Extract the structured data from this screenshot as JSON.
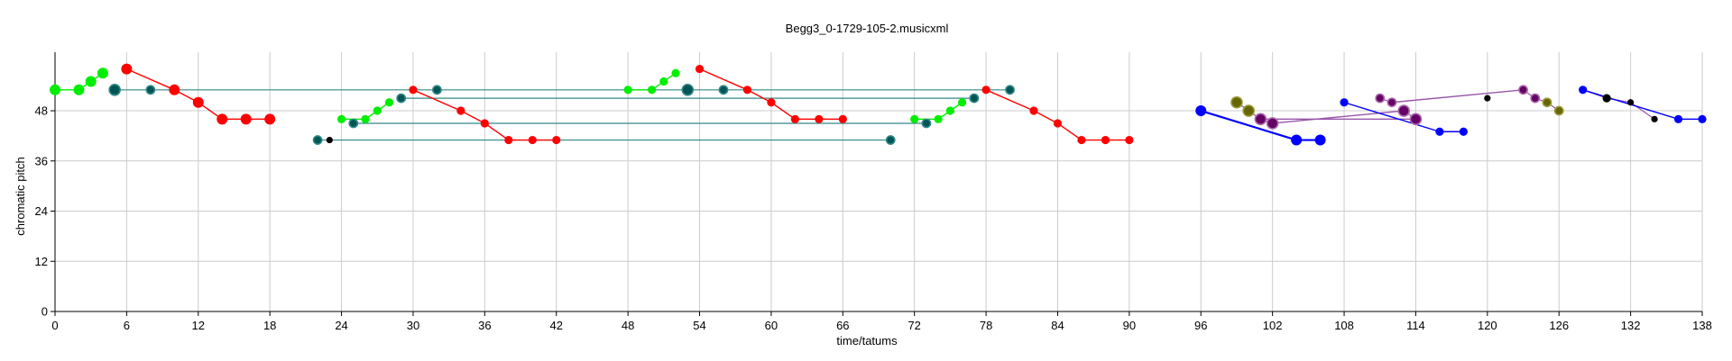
{
  "chart_data": {
    "type": "scatter",
    "title": "Begg3_0-1729-105-2.musicxml",
    "xlabel": "time/tatums",
    "ylabel": "chromatic pitch",
    "xlim": [
      0,
      138
    ],
    "ylim": [
      0,
      62
    ],
    "xticks": [
      0,
      6,
      12,
      18,
      24,
      30,
      36,
      42,
      48,
      54,
      60,
      66,
      72,
      78,
      84,
      90,
      96,
      102,
      108,
      114,
      120,
      126,
      132,
      138
    ],
    "yticks": [
      0,
      12,
      24,
      36,
      48
    ],
    "grid": true,
    "colors": {
      "bright_green": "#00ee00",
      "red": "#ff0000",
      "teal": "#005555",
      "teal_line": "#338888",
      "blue": "#0000ff",
      "purple": "#660066",
      "purple_line": "#9955aa",
      "olive": "#666600",
      "black": "#000000"
    },
    "groups": [
      {
        "color": "bright_green",
        "points": [
          [
            0,
            53,
            "l"
          ],
          [
            2,
            53,
            "l"
          ],
          [
            3,
            55,
            "l"
          ],
          [
            4,
            57,
            "l"
          ]
        ]
      },
      {
        "color": "red",
        "points": [
          [
            6,
            58,
            "l"
          ],
          [
            10,
            53,
            "l"
          ],
          [
            12,
            50,
            "l"
          ],
          [
            14,
            46,
            "l"
          ],
          [
            16,
            46,
            "l"
          ],
          [
            18,
            46,
            "l"
          ]
        ]
      },
      {
        "color": "bright_green",
        "points": [
          [
            24,
            46,
            "m"
          ],
          [
            26,
            46,
            "m"
          ],
          [
            27,
            48,
            "m"
          ],
          [
            28,
            50,
            "m"
          ]
        ]
      },
      {
        "color": "red",
        "points": [
          [
            30,
            53,
            "m"
          ],
          [
            34,
            48,
            "m"
          ],
          [
            36,
            45,
            "m"
          ],
          [
            38,
            41,
            "m"
          ],
          [
            40,
            41,
            "m"
          ],
          [
            42,
            41,
            "m"
          ]
        ]
      },
      {
        "color": "bright_green",
        "points": [
          [
            48,
            53,
            "m"
          ],
          [
            50,
            53,
            "m"
          ],
          [
            51,
            55,
            "m"
          ],
          [
            52,
            57,
            "m"
          ]
        ]
      },
      {
        "color": "red",
        "points": [
          [
            54,
            58,
            "m"
          ],
          [
            58,
            53,
            "m"
          ],
          [
            60,
            50,
            "m"
          ],
          [
            62,
            46,
            "m"
          ],
          [
            64,
            46,
            "m"
          ],
          [
            66,
            46,
            "m"
          ]
        ]
      },
      {
        "color": "bright_green",
        "points": [
          [
            72,
            46,
            "m"
          ],
          [
            74,
            46,
            "m"
          ],
          [
            75,
            48,
            "m"
          ],
          [
            76,
            50,
            "m"
          ]
        ]
      },
      {
        "color": "red",
        "points": [
          [
            78,
            53,
            "m"
          ],
          [
            82,
            48,
            "m"
          ],
          [
            84,
            45,
            "m"
          ],
          [
            86,
            41,
            "m"
          ],
          [
            88,
            41,
            "m"
          ],
          [
            90,
            41,
            "m"
          ]
        ]
      },
      {
        "color": "blue",
        "thick": true,
        "points": [
          [
            96,
            48,
            "l"
          ],
          [
            104,
            41,
            "l"
          ],
          [
            106,
            41,
            "l"
          ]
        ]
      },
      {
        "color": "blue",
        "points": [
          [
            108,
            50,
            "m"
          ],
          [
            116,
            43,
            "m"
          ],
          [
            118,
            43,
            "m"
          ]
        ]
      },
      {
        "color": "blue",
        "points": [
          [
            128,
            53,
            "m"
          ],
          [
            136,
            46,
            "m"
          ],
          [
            138,
            46,
            "m"
          ]
        ]
      }
    ],
    "teal_points": [
      [
        5,
        53,
        "l"
      ],
      [
        8,
        53,
        "m"
      ],
      [
        22,
        41,
        "m"
      ],
      [
        25,
        45,
        "m"
      ],
      [
        29,
        51,
        "m"
      ],
      [
        32,
        53,
        "m"
      ],
      [
        53,
        53,
        "l"
      ],
      [
        56,
        53,
        "m"
      ],
      [
        70,
        41,
        "m"
      ],
      [
        73,
        45,
        "m"
      ],
      [
        77,
        51,
        "m"
      ],
      [
        80,
        53,
        "m"
      ]
    ],
    "teal_links": [
      [
        5,
        53,
        80,
        53
      ],
      [
        29,
        51,
        77,
        51
      ],
      [
        25,
        45,
        73,
        45
      ],
      [
        22,
        41,
        70,
        41
      ]
    ],
    "purple_points": [
      [
        101,
        46,
        "l"
      ],
      [
        102,
        45,
        "l"
      ],
      [
        111,
        51,
        "m"
      ],
      [
        112,
        50,
        "m"
      ],
      [
        113,
        48,
        "l"
      ],
      [
        114,
        46,
        "l"
      ],
      [
        123,
        53,
        "m"
      ],
      [
        124,
        51,
        "m"
      ]
    ],
    "purple_links": [
      [
        102,
        45,
        113,
        48
      ],
      [
        112,
        50,
        123,
        53
      ],
      [
        101,
        46,
        114,
        46
      ]
    ],
    "olive_points": [
      [
        99,
        50,
        "l"
      ],
      [
        100,
        48,
        "l"
      ],
      [
        125,
        50,
        "m"
      ],
      [
        126,
        48,
        "m"
      ]
    ],
    "black_points": [
      [
        23,
        41,
        "s"
      ],
      [
        120,
        51,
        "s"
      ],
      [
        130,
        51,
        "m"
      ],
      [
        132,
        50,
        "s"
      ],
      [
        134,
        46,
        "s"
      ]
    ],
    "purple_connects": [
      [
        99,
        50,
        100,
        48
      ],
      [
        100,
        48,
        101,
        46
      ],
      [
        101,
        46,
        102,
        45
      ],
      [
        111,
        51,
        112,
        50
      ],
      [
        113,
        48,
        114,
        46
      ],
      [
        123,
        53,
        124,
        51
      ],
      [
        124,
        51,
        125,
        50
      ],
      [
        125,
        50,
        126,
        48
      ],
      [
        128,
        53,
        130,
        51
      ],
      [
        130,
        51,
        132,
        50
      ],
      [
        132,
        50,
        134,
        46
      ]
    ]
  }
}
